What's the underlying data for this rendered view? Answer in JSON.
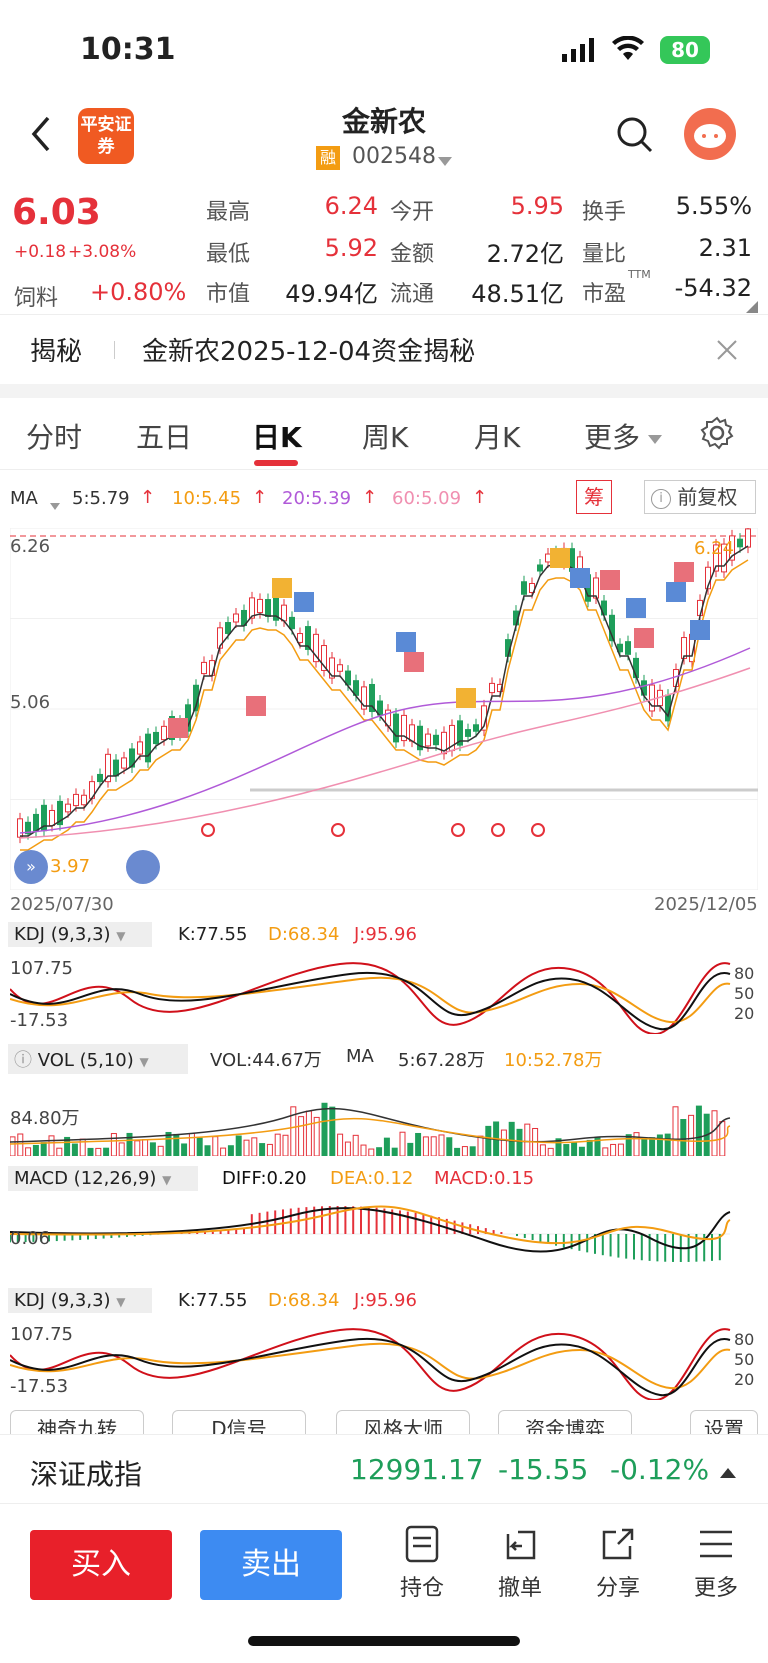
{
  "status": {
    "time": "10:31",
    "battery": "80"
  },
  "header": {
    "logo": "平安证券",
    "title": "金新农",
    "margin_tag": "融",
    "code": "002548"
  },
  "quote": {
    "price": "6.03",
    "change": "+0.18",
    "change_pct": "+3.08%",
    "sector": "饲料",
    "sector_pct": "+0.80%",
    "rows": [
      [
        [
          "最高",
          "6.24",
          "red"
        ],
        [
          "今开",
          "5.95",
          "red"
        ],
        [
          "换手",
          "5.55%",
          "black"
        ]
      ],
      [
        [
          "最低",
          "5.92",
          "red"
        ],
        [
          "金额",
          "2.72亿",
          "black"
        ],
        [
          "量比",
          "2.31",
          "black"
        ]
      ],
      [
        [
          "市值",
          "49.94亿",
          "black"
        ],
        [
          "流通",
          "48.51亿",
          "black"
        ],
        [
          "市盈",
          "-54.32",
          "black"
        ]
      ]
    ],
    "pe_tag": "TTM"
  },
  "notice": {
    "tag": "揭秘",
    "text": "金新农2025-12-04资金揭秘"
  },
  "tabs": [
    "分时",
    "五日",
    "日K",
    "周K",
    "月K",
    "更多"
  ],
  "active_tab": "日K",
  "ma_line": {
    "label": "MA",
    "ma5": "5:5.79",
    "ma10": "10:5.45",
    "ma20": "20:5.39",
    "ma60": "60:5.09",
    "chip_btn": "筹",
    "adjust": "前复权"
  },
  "kline": {
    "price_high": "6.26",
    "price_mid": "5.06",
    "price_low": "3.97",
    "top_label": "6.24",
    "date_start": "2025/07/30",
    "date_end": "2025/12/05"
  },
  "kdj1": {
    "title": "KDJ (9,3,3)",
    "k": "K:77.55",
    "d": "D:68.34",
    "j": "J:95.96",
    "top": "107.75",
    "bottom": "-17.53",
    "levels": [
      "80",
      "50",
      "20"
    ]
  },
  "vol": {
    "title": "VOL (5,10)",
    "vol": "VOL:44.67万",
    "ma_label": "MA",
    "ma5": "5:67.28万",
    "ma10": "10:52.78万",
    "scale": "84.80万"
  },
  "macd": {
    "title": "MACD (12,26,9)",
    "diff": "DIFF:0.20",
    "dea": "DEA:0.12",
    "macd": "MACD:0.15",
    "zero": "0.06"
  },
  "kdj2": {
    "title": "KDJ (9,3,3)",
    "k": "K:77.55",
    "d": "D:68.34",
    "j": "J:95.96",
    "top": "107.75",
    "bottom": "-17.53",
    "levels": [
      "80",
      "50",
      "20"
    ]
  },
  "chips": [
    "神奇九转",
    "D信号",
    "风格大师",
    "资金博弈",
    "设置"
  ],
  "index_bar": {
    "name": "深证成指",
    "value": "12991.17",
    "change": "-15.55",
    "pct": "-0.12%"
  },
  "bottom": {
    "buy": "买入",
    "sell": "卖出",
    "items": [
      "持仓",
      "撤单",
      "分享",
      "更多"
    ]
  },
  "colors": {
    "up": "#e5313a",
    "down": "#1e9e5a",
    "buy_btn": "#e8202a",
    "sell_btn": "#3d8bf2"
  }
}
